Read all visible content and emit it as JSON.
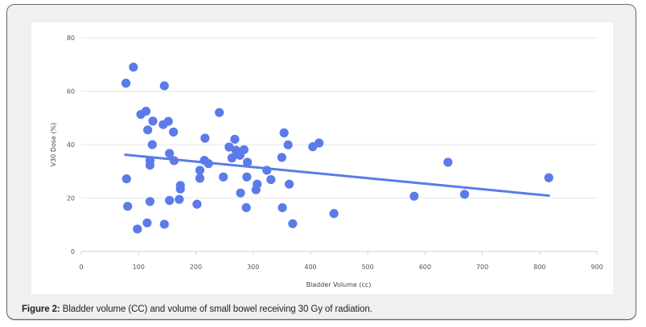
{
  "figure": {
    "caption_label": "Figure 2:",
    "caption_text": " Bladder volume (CC) and volume of small bowel receiving 30 Gy of radiation."
  },
  "colors": {
    "point": "#5b7be9",
    "trendline": "#5b7be9",
    "grid": "#e6e6e6",
    "frame_bg": "#f0f0f0"
  },
  "chart_data": {
    "type": "scatter",
    "title": "",
    "xlabel": "Bladder Volume (cc)",
    "ylabel": "V30 Dose (%)",
    "xlim": [
      0,
      900
    ],
    "ylim": [
      0,
      80
    ],
    "xticks": [
      0,
      100,
      200,
      300,
      400,
      500,
      600,
      700,
      800,
      900
    ],
    "yticks": [
      0,
      20,
      40,
      60,
      80
    ],
    "grid": "horizontal",
    "legend": "none",
    "series": [
      {
        "name": "V30 Dose",
        "points": [
          [
            78,
            63
          ],
          [
            91,
            69
          ],
          [
            145,
            62
          ],
          [
            104,
            51.3
          ],
          [
            113,
            52.5
          ],
          [
            125,
            48.8
          ],
          [
            116,
            45.5
          ],
          [
            143,
            47.5
          ],
          [
            152,
            48.7
          ],
          [
            161,
            44.7
          ],
          [
            124,
            40
          ],
          [
            241,
            52
          ],
          [
            216,
            42.4
          ],
          [
            268,
            42
          ],
          [
            258,
            39.1
          ],
          [
            284,
            38.1
          ],
          [
            270,
            37.9
          ],
          [
            277,
            36
          ],
          [
            263,
            35
          ],
          [
            290,
            33.4
          ],
          [
            154,
            36.7
          ],
          [
            162,
            34
          ],
          [
            120,
            34
          ],
          [
            120,
            32.3
          ],
          [
            215,
            34.1
          ],
          [
            222,
            32.9
          ],
          [
            324,
            30.4
          ],
          [
            207,
            30.4
          ],
          [
            207,
            27.4
          ],
          [
            248,
            27.9
          ],
          [
            289,
            27.9
          ],
          [
            331,
            26.9
          ],
          [
            363,
            25.2
          ],
          [
            307,
            25.2
          ],
          [
            305,
            23.1
          ],
          [
            278,
            21.9
          ],
          [
            202,
            17.7
          ],
          [
            288,
            16.4
          ],
          [
            351,
            16.4
          ],
          [
            441,
            14.2
          ],
          [
            369,
            10.4
          ],
          [
            354,
            44.4
          ],
          [
            361,
            39.9
          ],
          [
            404,
            39.2
          ],
          [
            415,
            40.6
          ],
          [
            350,
            35.2
          ],
          [
            79,
            27.2
          ],
          [
            81,
            16.9
          ],
          [
            120,
            18.7
          ],
          [
            98,
            8.4
          ],
          [
            115,
            10.7
          ],
          [
            145,
            10.2
          ],
          [
            154,
            19.1
          ],
          [
            171,
            19.5
          ],
          [
            173,
            24.7
          ],
          [
            173,
            23.4
          ],
          [
            640,
            33.4
          ],
          [
            581,
            20.7
          ],
          [
            669,
            21.4
          ],
          [
            816,
            27.6
          ]
        ]
      }
    ],
    "trendline": {
      "type": "linear",
      "from": [
        77,
        36.2
      ],
      "to": [
        816,
        20.9
      ]
    }
  }
}
